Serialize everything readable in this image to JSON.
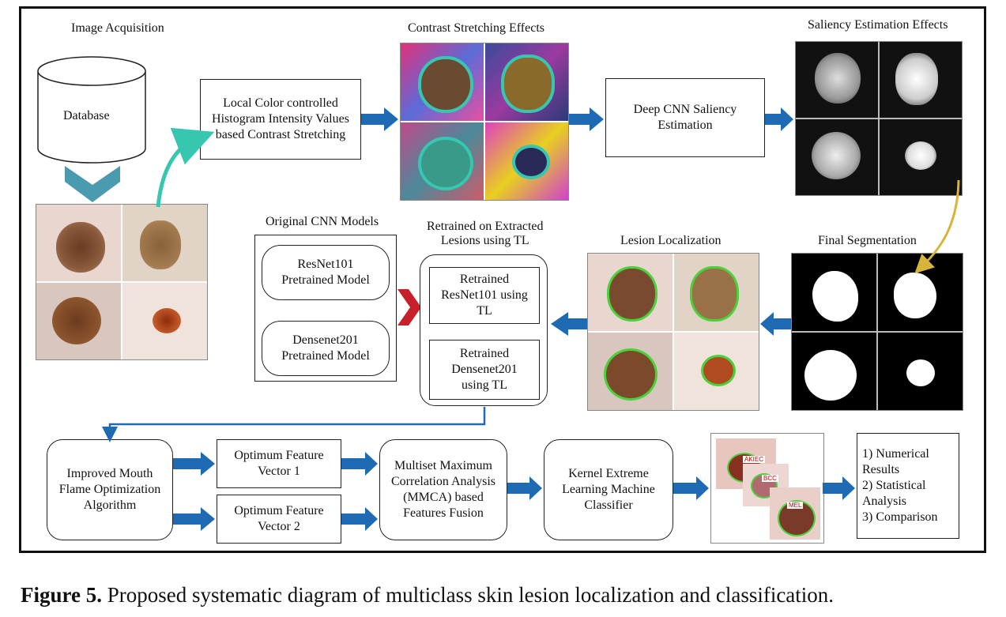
{
  "labels": {
    "image_acquisition": "Image Acquisition",
    "contrast_stretching_effects": "Contrast Stretching Effects",
    "saliency_estimation_effects": "Saliency Estimation Effects",
    "original_cnn_models": "Original CNN Models",
    "retrained_title": "Retrained on Extracted\nLesions using TL",
    "lesion_localization": "Lesion Localization",
    "final_segmentation": "Final Segmentation"
  },
  "boxes": {
    "database": "Database",
    "contrast_stretching": "Local Color controlled\nHistogram Intensity Values\nbased Contrast Stretching",
    "deep_cnn_saliency": "Deep CNN Saliency\nEstimation",
    "resnet101_pretrained": "ResNet101\nPretrained Model",
    "densenet201_pretrained": "Densenet201\nPretrained Model",
    "retrained_resnet101": "Retrained\nResNet101 using\nTL",
    "retrained_densenet201": "Retrained\nDensenet201\nusing TL",
    "improved_mfo": "Improved Mouth\nFlame Optimization\nAlgorithm",
    "feature_vector_1": "Optimum Feature\nVector 1",
    "feature_vector_2": "Optimum Feature\nVector 2",
    "mmca_fusion": "Multiset Maximum\nCorrelation Analysis\n(MMCA) based\nFeatures Fusion",
    "kelm_classifier": "Kernel Extreme\nLearning Machine\nClassifier",
    "results": "1) Numerical\nResults\n2) Statistical\nAnalysis\n3) Comparison"
  },
  "classification_tags": [
    "AKIEC",
    "BCC",
    "MEL"
  ],
  "caption": {
    "figure_label": "Figure 5.",
    "text": "Proposed systematic diagram of multiclass skin lesion localization and classification."
  },
  "colors": {
    "arrow_blue": "#1f6bb3",
    "teal": "#37c7b0",
    "gold": "#d9b43a",
    "chevron_red": "#c8202a",
    "chevron_teal": "#4a9bb0"
  }
}
